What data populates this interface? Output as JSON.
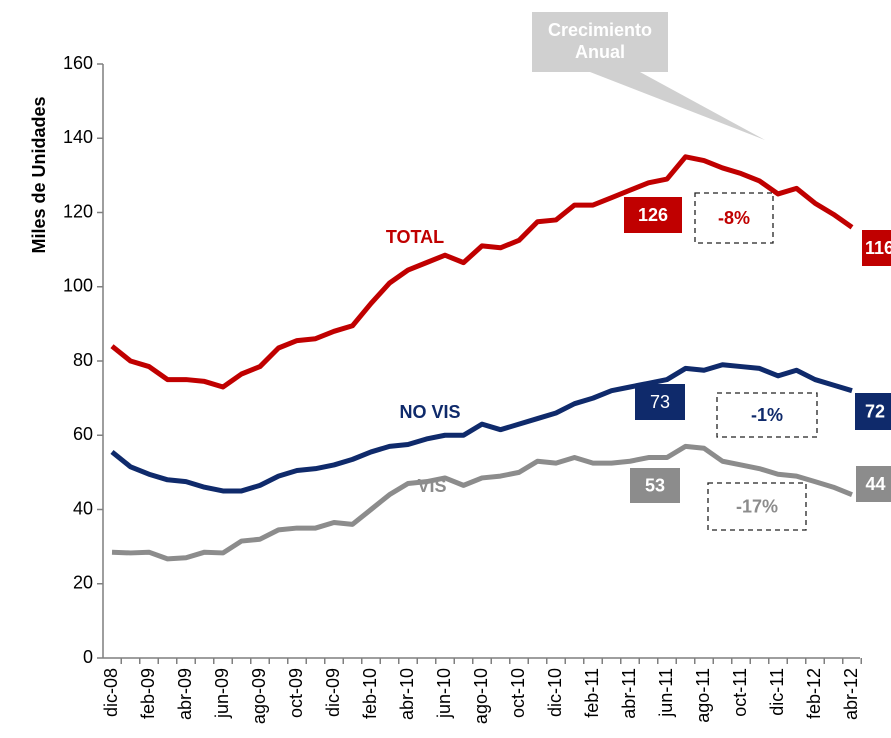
{
  "chart_data": {
    "type": "line",
    "y_label": "Miles de Unidades",
    "callout": "Crecimiento Anual",
    "categories": [
      "dic-08",
      null,
      "feb-09",
      null,
      "abr-09",
      null,
      "jun-09",
      null,
      "ago-09",
      null,
      "oct-09",
      null,
      "dic-09",
      null,
      "feb-10",
      null,
      "abr-10",
      null,
      "jun-10",
      null,
      "ago-10",
      null,
      "oct-10",
      null,
      "dic-10",
      null,
      "feb-11",
      null,
      "abr-11",
      null,
      "jun-11",
      null,
      "ago-11",
      null,
      "oct-11",
      null,
      "dic-11",
      null,
      "feb-12",
      null,
      "abr-12"
    ],
    "ylim": [
      0,
      160
    ],
    "yticks": [
      0,
      20,
      40,
      60,
      80,
      100,
      120,
      140,
      160
    ],
    "series": [
      {
        "name": "TOTAL",
        "color": "#c00000",
        "start_label": "126",
        "change_label": "-8%",
        "end_label": "116",
        "values": [
          84,
          80,
          78.5,
          75,
          75,
          74.5,
          73,
          76.5,
          78.5,
          83.5,
          85.5,
          86,
          88,
          89.5,
          95.5,
          101,
          104.5,
          106.5,
          108.5,
          106.5,
          111,
          110.5,
          112.5,
          117.5,
          118,
          122,
          122,
          124,
          126,
          128,
          129,
          135,
          134,
          132,
          130.5,
          128.5,
          125,
          126.5,
          122.5,
          119.5,
          116
        ]
      },
      {
        "name": "NO VIS",
        "color": "#0f2a6b",
        "start_label": "73",
        "change_label": "-1%",
        "end_label": "72",
        "values": [
          55.5,
          51.5,
          49.5,
          48,
          47.5,
          46,
          45,
          45,
          46.5,
          49,
          50.5,
          51,
          52,
          53.5,
          55.5,
          57,
          57.5,
          59,
          60,
          60,
          63,
          61.5,
          63,
          64.5,
          66,
          68.5,
          70,
          72,
          73,
          74,
          75,
          78,
          77.5,
          79,
          78.5,
          78,
          76,
          77.5,
          75,
          73.5,
          72
        ]
      },
      {
        "name": "VIS",
        "color": "#8c8c8c",
        "start_label": "53",
        "change_label": "-17%",
        "end_label": "44",
        "values": [
          28.5,
          28.3,
          28.5,
          26.7,
          27,
          28.5,
          28.3,
          31.5,
          32,
          34.5,
          35,
          35,
          36.5,
          36,
          40,
          44,
          47,
          47.5,
          48.5,
          46.5,
          48.5,
          49,
          50,
          53,
          52.5,
          54,
          52.5,
          52.5,
          53,
          54,
          54,
          57,
          56.5,
          53,
          52,
          51,
          49.5,
          49,
          47.5,
          46,
          44
        ]
      }
    ]
  }
}
